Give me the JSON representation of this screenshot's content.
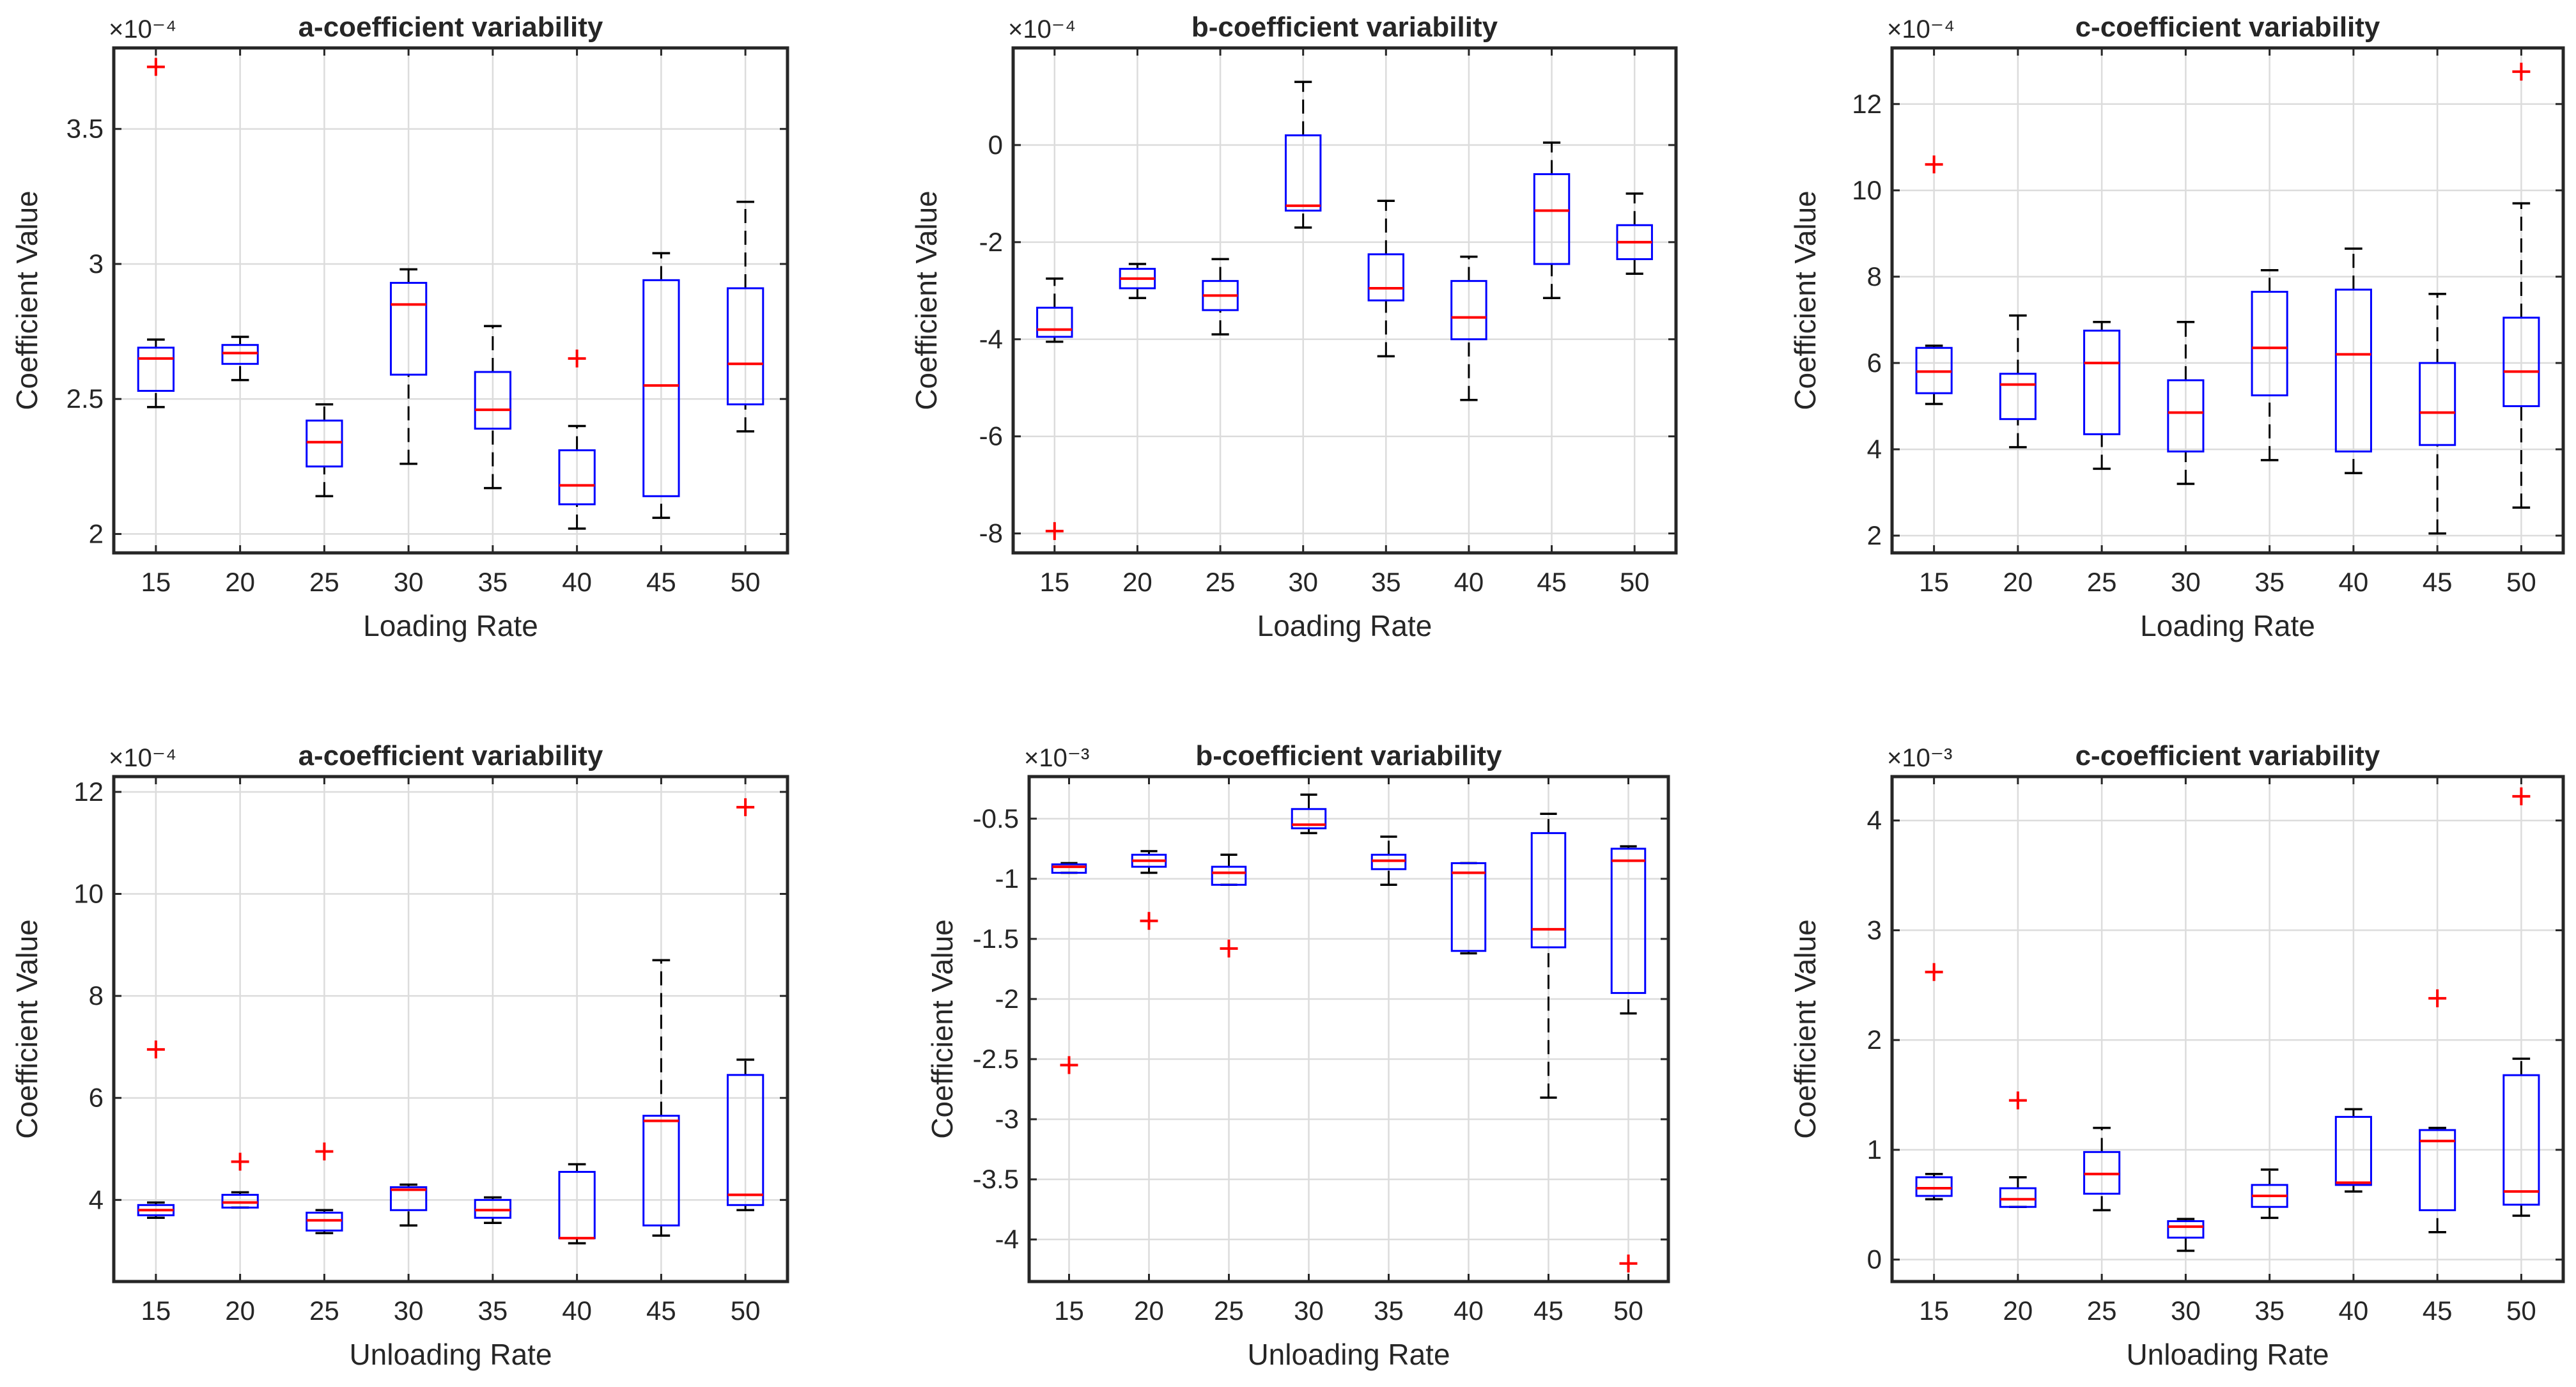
{
  "chart_data": [
    {
      "type": "boxplot",
      "title": "a-coefficient variability",
      "xlabel": "Loading Rate",
      "ylabel": "Coefficient Value",
      "exponent": "×10⁻⁴",
      "categories": [
        "15",
        "20",
        "25",
        "30",
        "35",
        "40",
        "45",
        "50"
      ],
      "ylim": [
        1.93,
        3.8
      ],
      "yticks": [
        2,
        2.5,
        3,
        3.5
      ],
      "ytick_labels": [
        "2",
        "2.5",
        "3",
        "3.5"
      ],
      "boxes": [
        {
          "lw": 2.47,
          "q1": 2.53,
          "med": 2.65,
          "q3": 2.69,
          "uw": 2.72,
          "outliers": [
            3.73
          ]
        },
        {
          "lw": 2.57,
          "q1": 2.63,
          "med": 2.67,
          "q3": 2.7,
          "uw": 2.73,
          "outliers": []
        },
        {
          "lw": 2.14,
          "q1": 2.25,
          "med": 2.34,
          "q3": 2.42,
          "uw": 2.48,
          "outliers": []
        },
        {
          "lw": 2.26,
          "q1": 2.59,
          "med": 2.85,
          "q3": 2.93,
          "uw": 2.98,
          "outliers": []
        },
        {
          "lw": 2.17,
          "q1": 2.39,
          "med": 2.46,
          "q3": 2.6,
          "uw": 2.77,
          "outliers": []
        },
        {
          "lw": 2.02,
          "q1": 2.11,
          "med": 2.18,
          "q3": 2.31,
          "uw": 2.4,
          "outliers": [
            2.65
          ]
        },
        {
          "lw": 2.06,
          "q1": 2.14,
          "med": 2.55,
          "q3": 2.94,
          "uw": 3.04,
          "outliers": []
        },
        {
          "lw": 2.38,
          "q1": 2.48,
          "med": 2.63,
          "q3": 2.91,
          "uw": 3.23,
          "outliers": []
        }
      ]
    },
    {
      "type": "boxplot",
      "title": "b-coefficient variability",
      "xlabel": "Loading Rate",
      "ylabel": "Coefficient Value",
      "exponent": "×10⁻⁴",
      "categories": [
        "15",
        "20",
        "25",
        "30",
        "35",
        "40",
        "45",
        "50"
      ],
      "ylim": [
        -8.4,
        2.0
      ],
      "yticks": [
        -8,
        -6,
        -4,
        -2,
        0
      ],
      "ytick_labels": [
        "-8",
        "-6",
        "-4",
        "-2",
        "0"
      ],
      "boxes": [
        {
          "lw": -4.05,
          "q1": -3.95,
          "med": -3.8,
          "q3": -3.35,
          "uw": -2.75,
          "outliers": [
            -7.95
          ]
        },
        {
          "lw": -3.15,
          "q1": -2.95,
          "med": -2.75,
          "q3": -2.55,
          "uw": -2.45,
          "outliers": []
        },
        {
          "lw": -3.9,
          "q1": -3.4,
          "med": -3.1,
          "q3": -2.8,
          "uw": -2.35,
          "outliers": []
        },
        {
          "lw": -1.7,
          "q1": -1.35,
          "med": -1.25,
          "q3": 0.2,
          "uw": 1.3,
          "outliers": []
        },
        {
          "lw": -4.35,
          "q1": -3.2,
          "med": -2.95,
          "q3": -2.25,
          "uw": -1.15,
          "outliers": []
        },
        {
          "lw": -5.25,
          "q1": -4.0,
          "med": -3.55,
          "q3": -2.8,
          "uw": -2.3,
          "outliers": []
        },
        {
          "lw": -3.15,
          "q1": -2.45,
          "med": -1.35,
          "q3": -0.6,
          "uw": 0.05,
          "outliers": []
        },
        {
          "lw": -2.65,
          "q1": -2.35,
          "med": -2.0,
          "q3": -1.65,
          "uw": -1.0,
          "outliers": []
        }
      ]
    },
    {
      "type": "boxplot",
      "title": "c-coefficient variability",
      "xlabel": "Loading Rate",
      "ylabel": "Coefficient Value",
      "exponent": "×10⁻⁴",
      "categories": [
        "15",
        "20",
        "25",
        "30",
        "35",
        "40",
        "45",
        "50"
      ],
      "ylim": [
        1.6,
        13.3
      ],
      "yticks": [
        2,
        4,
        6,
        8,
        10,
        12
      ],
      "ytick_labels": [
        "2",
        "4",
        "6",
        "8",
        "10",
        "12"
      ],
      "boxes": [
        {
          "lw": 5.05,
          "q1": 5.3,
          "med": 5.8,
          "q3": 6.35,
          "uw": 6.4,
          "outliers": [
            10.6
          ]
        },
        {
          "lw": 4.05,
          "q1": 4.7,
          "med": 5.5,
          "q3": 5.75,
          "uw": 7.1,
          "outliers": []
        },
        {
          "lw": 3.55,
          "q1": 4.35,
          "med": 6.0,
          "q3": 6.75,
          "uw": 6.95,
          "outliers": []
        },
        {
          "lw": 3.2,
          "q1": 3.95,
          "med": 4.85,
          "q3": 5.6,
          "uw": 6.95,
          "outliers": []
        },
        {
          "lw": 3.75,
          "q1": 5.25,
          "med": 6.35,
          "q3": 7.65,
          "uw": 8.15,
          "outliers": []
        },
        {
          "lw": 3.45,
          "q1": 3.95,
          "med": 6.2,
          "q3": 7.7,
          "uw": 8.65,
          "outliers": []
        },
        {
          "lw": 2.05,
          "q1": 4.1,
          "med": 4.85,
          "q3": 6.0,
          "uw": 7.6,
          "outliers": []
        },
        {
          "lw": 2.65,
          "q1": 5.0,
          "med": 5.8,
          "q3": 7.05,
          "uw": 9.7,
          "outliers": [
            12.75
          ]
        }
      ]
    },
    {
      "type": "boxplot",
      "title": "a-coefficient variability",
      "xlabel": "Unloading Rate",
      "ylabel": "Coefficient Value",
      "exponent": "×10⁻⁴",
      "categories": [
        "15",
        "20",
        "25",
        "30",
        "35",
        "40",
        "45",
        "50"
      ],
      "ylim": [
        2.4,
        12.3
      ],
      "yticks": [
        4,
        6,
        8,
        10,
        12
      ],
      "ytick_labels": [
        "4",
        "6",
        "8",
        "10",
        "12"
      ],
      "boxes": [
        {
          "lw": 3.65,
          "q1": 3.7,
          "med": 3.8,
          "q3": 3.9,
          "uw": 3.95,
          "outliers": [
            6.95
          ]
        },
        {
          "lw": 3.85,
          "q1": 3.85,
          "med": 3.95,
          "q3": 4.1,
          "uw": 4.15,
          "outliers": [
            4.75
          ]
        },
        {
          "lw": 3.35,
          "q1": 3.4,
          "med": 3.6,
          "q3": 3.75,
          "uw": 3.8,
          "outliers": [
            4.95
          ]
        },
        {
          "lw": 3.5,
          "q1": 3.8,
          "med": 4.2,
          "q3": 4.25,
          "uw": 4.3,
          "outliers": []
        },
        {
          "lw": 3.55,
          "q1": 3.65,
          "med": 3.8,
          "q3": 4.0,
          "uw": 4.05,
          "outliers": []
        },
        {
          "lw": 3.15,
          "q1": 3.25,
          "med": 3.25,
          "q3": 4.55,
          "uw": 4.7,
          "outliers": []
        },
        {
          "lw": 3.3,
          "q1": 3.5,
          "med": 5.55,
          "q3": 5.65,
          "uw": 8.7,
          "outliers": []
        },
        {
          "lw": 3.8,
          "q1": 3.9,
          "med": 4.1,
          "q3": 6.45,
          "uw": 6.75,
          "outliers": [
            11.7
          ]
        }
      ]
    },
    {
      "type": "boxplot",
      "title": "b-coefficient variability",
      "xlabel": "Unloading Rate",
      "ylabel": "Coefficient Value",
      "exponent": "×10⁻³",
      "categories": [
        "15",
        "20",
        "25",
        "30",
        "35",
        "40",
        "45",
        "50"
      ],
      "ylim": [
        -4.35,
        -0.15
      ],
      "yticks": [
        -4,
        -3.5,
        -3,
        -2.5,
        -2,
        -1.5,
        -1,
        -0.5
      ],
      "ytick_labels": [
        "-4",
        "-3.5",
        "-3",
        "-2.5",
        "-2",
        "-1.5",
        "-1",
        "-0.5"
      ],
      "boxes": [
        {
          "lw": -0.95,
          "q1": -0.95,
          "med": -0.9,
          "q3": -0.88,
          "uw": -0.87,
          "outliers": [
            -2.55
          ]
        },
        {
          "lw": -0.95,
          "q1": -0.9,
          "med": -0.85,
          "q3": -0.8,
          "uw": -0.77,
          "outliers": [
            -1.35
          ]
        },
        {
          "lw": -1.05,
          "q1": -1.05,
          "med": -0.95,
          "q3": -0.9,
          "uw": -0.8,
          "outliers": [
            -1.58
          ]
        },
        {
          "lw": -0.62,
          "q1": -0.58,
          "med": -0.55,
          "q3": -0.42,
          "uw": -0.3,
          "outliers": []
        },
        {
          "lw": -1.05,
          "q1": -0.92,
          "med": -0.85,
          "q3": -0.8,
          "uw": -0.65,
          "outliers": []
        },
        {
          "lw": -1.62,
          "q1": -1.6,
          "med": -0.95,
          "q3": -0.87,
          "uw": -0.87,
          "outliers": []
        },
        {
          "lw": -2.82,
          "q1": -1.57,
          "med": -1.42,
          "q3": -0.62,
          "uw": -0.46,
          "outliers": []
        },
        {
          "lw": -2.12,
          "q1": -1.95,
          "med": -0.85,
          "q3": -0.75,
          "uw": -0.73,
          "outliers": [
            -4.2
          ]
        }
      ]
    },
    {
      "type": "boxplot",
      "title": "c-coefficient variability",
      "xlabel": "Unloading Rate",
      "ylabel": "Coefficient Value",
      "exponent": "×10⁻³",
      "categories": [
        "15",
        "20",
        "25",
        "30",
        "35",
        "40",
        "45",
        "50"
      ],
      "ylim": [
        -0.2,
        4.4
      ],
      "yticks": [
        0,
        1,
        2,
        3,
        4
      ],
      "ytick_labels": [
        "0",
        "1",
        "2",
        "3",
        "4"
      ],
      "boxes": [
        {
          "lw": 0.55,
          "q1": 0.58,
          "med": 0.65,
          "q3": 0.75,
          "uw": 0.78,
          "outliers": [
            2.62
          ]
        },
        {
          "lw": 0.48,
          "q1": 0.48,
          "med": 0.55,
          "q3": 0.65,
          "uw": 0.75,
          "outliers": [
            1.45
          ]
        },
        {
          "lw": 0.45,
          "q1": 0.6,
          "med": 0.78,
          "q3": 0.98,
          "uw": 1.2,
          "outliers": []
        },
        {
          "lw": 0.08,
          "q1": 0.2,
          "med": 0.3,
          "q3": 0.35,
          "uw": 0.37,
          "outliers": []
        },
        {
          "lw": 0.38,
          "q1": 0.48,
          "med": 0.58,
          "q3": 0.68,
          "uw": 0.82,
          "outliers": []
        },
        {
          "lw": 0.62,
          "q1": 0.68,
          "med": 0.7,
          "q3": 1.3,
          "uw": 1.37,
          "outliers": []
        },
        {
          "lw": 0.25,
          "q1": 0.45,
          "med": 1.08,
          "q3": 1.18,
          "uw": 1.2,
          "outliers": [
            2.38
          ]
        },
        {
          "lw": 0.4,
          "q1": 0.5,
          "med": 0.62,
          "q3": 1.68,
          "uw": 1.83,
          "outliers": [
            4.22
          ]
        }
      ]
    }
  ]
}
